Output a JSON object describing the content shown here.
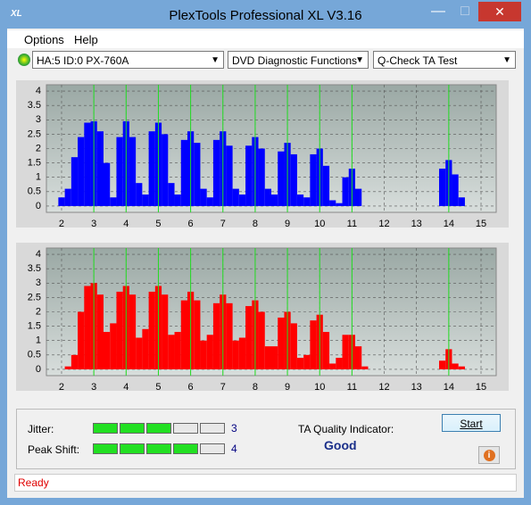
{
  "window": {
    "title": "PlexTools Professional XL V3.16",
    "menu": [
      "Options",
      "Help"
    ],
    "selects": [
      "HA:5 ID:0  PX-760A",
      "DVD Diagnostic Functions",
      "Q-Check TA Test"
    ],
    "jitter_label": "Jitter:",
    "jitter": 3,
    "peak_shift_label": "Peak Shift:",
    "peak_shift": 4,
    "meter_cells": 5,
    "quality_label": "TA Quality Indicator:",
    "quality": "Good",
    "start": "Start",
    "status": "Ready"
  },
  "chart_data": [
    {
      "type": "bar",
      "color": "#0000ff",
      "xlim": [
        1.53,
        15.47
      ],
      "ylim": [
        -0.22,
        4.22
      ],
      "xticks": [
        2,
        3,
        4,
        5,
        6,
        7,
        8,
        9,
        10,
        11,
        12,
        13,
        14,
        15
      ],
      "yticks": [
        0,
        0.5,
        1,
        1.5,
        2,
        2.5,
        3,
        3.5,
        4
      ],
      "markers": [
        3,
        4,
        5,
        6,
        7,
        8,
        9,
        10,
        11,
        14
      ],
      "grid": true,
      "x": [
        2.0,
        2.2,
        2.4,
        2.6,
        2.8,
        3.0,
        3.2,
        3.4,
        3.6,
        3.8,
        4.0,
        4.2,
        4.4,
        4.6,
        4.8,
        5.0,
        5.2,
        5.4,
        5.6,
        5.8,
        6.0,
        6.2,
        6.4,
        6.6,
        6.8,
        7.0,
        7.2,
        7.4,
        7.6,
        7.8,
        8.0,
        8.2,
        8.4,
        8.6,
        8.8,
        9.0,
        9.2,
        9.4,
        9.6,
        9.8,
        10.0,
        10.2,
        10.4,
        10.6,
        10.8,
        11.0,
        11.2,
        11.4,
        11.6,
        11.8,
        12.0,
        12.2,
        12.4,
        12.6,
        12.8,
        13.0,
        13.2,
        13.4,
        13.6,
        13.8,
        14.0,
        14.2,
        14.4
      ],
      "values": [
        0.3,
        0.6,
        1.7,
        2.4,
        2.9,
        2.95,
        2.6,
        1.5,
        0.3,
        2.4,
        2.95,
        2.4,
        0.8,
        0.4,
        2.6,
        2.9,
        2.5,
        0.8,
        0.4,
        2.3,
        2.6,
        2.2,
        0.6,
        0.3,
        2.3,
        2.6,
        2.1,
        0.6,
        0.4,
        2.1,
        2.4,
        2.0,
        0.6,
        0.4,
        1.9,
        2.2,
        1.8,
        0.4,
        0.3,
        1.8,
        2.0,
        1.4,
        0.2,
        0.1,
        1.0,
        1.3,
        0.6,
        0,
        0,
        0,
        0,
        0,
        0,
        0,
        0,
        0,
        0,
        0,
        0,
        1.3,
        1.6,
        1.1,
        0.3
      ]
    },
    {
      "type": "bar",
      "color": "#ff0000",
      "xlim": [
        1.53,
        15.47
      ],
      "ylim": [
        -0.22,
        4.22
      ],
      "xticks": [
        2,
        3,
        4,
        5,
        6,
        7,
        8,
        9,
        10,
        11,
        12,
        13,
        14,
        15
      ],
      "yticks": [
        0,
        0.5,
        1,
        1.5,
        2,
        2.5,
        3,
        3.5,
        4
      ],
      "markers": [
        3,
        4,
        5,
        6,
        7,
        8,
        9,
        10,
        11,
        14
      ],
      "grid": true,
      "x": [
        2.0,
        2.2,
        2.4,
        2.6,
        2.8,
        3.0,
        3.2,
        3.4,
        3.6,
        3.8,
        4.0,
        4.2,
        4.4,
        4.6,
        4.8,
        5.0,
        5.2,
        5.4,
        5.6,
        5.8,
        6.0,
        6.2,
        6.4,
        6.6,
        6.8,
        7.0,
        7.2,
        7.4,
        7.6,
        7.8,
        8.0,
        8.2,
        8.4,
        8.6,
        8.8,
        9.0,
        9.2,
        9.4,
        9.6,
        9.8,
        10.0,
        10.2,
        10.4,
        10.6,
        10.8,
        11.0,
        11.2,
        11.4,
        11.6,
        11.8,
        12.0,
        12.2,
        12.4,
        12.6,
        12.8,
        13.0,
        13.2,
        13.4,
        13.6,
        13.8,
        14.0,
        14.2,
        14.4
      ],
      "values": [
        0,
        0.1,
        0.5,
        2.0,
        2.9,
        3.0,
        2.6,
        1.3,
        1.6,
        2.7,
        2.9,
        2.6,
        1.1,
        1.4,
        2.7,
        2.9,
        2.6,
        1.2,
        1.3,
        2.4,
        2.7,
        2.4,
        1.0,
        1.2,
        2.3,
        2.6,
        2.3,
        1.0,
        1.1,
        2.2,
        2.4,
        2.0,
        0.8,
        0.8,
        1.8,
        2.0,
        1.6,
        0.4,
        0.5,
        1.7,
        1.9,
        1.3,
        0.2,
        0.4,
        1.2,
        1.2,
        0.8,
        0.1,
        0,
        0,
        0,
        0,
        0,
        0,
        0,
        0,
        0,
        0,
        0,
        0.3,
        0.7,
        0.2,
        0.1
      ]
    }
  ]
}
